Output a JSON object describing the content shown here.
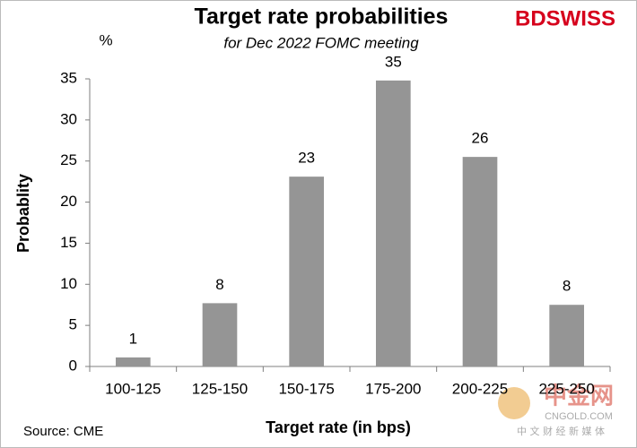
{
  "chart_data": {
    "type": "bar",
    "title": "Target rate probabilities",
    "subtitle": "for Dec 2022 FOMC meeting",
    "y_unit": "%",
    "y_label": "Probablity",
    "x_label": "Target rate (in bps)",
    "source": "Source: CME",
    "logo": "BDSWISS",
    "watermark": {
      "name": "中金网",
      "site": "CNGOLD.COM",
      "tagline": "中 文 财 经 新 媒 体"
    },
    "categories": [
      "100-125",
      "125-150",
      "150-175",
      "175-200",
      "200-225",
      "225-250"
    ],
    "values": [
      1.1,
      7.7,
      23.1,
      34.8,
      25.5,
      7.5
    ],
    "value_labels": [
      "1",
      "8",
      "23",
      "35",
      "26",
      "8"
    ],
    "color": "#959595",
    "ylim": [
      0,
      35
    ],
    "yticks": [
      0,
      5,
      10,
      15,
      20,
      25,
      30,
      35
    ],
    "grid": false
  }
}
